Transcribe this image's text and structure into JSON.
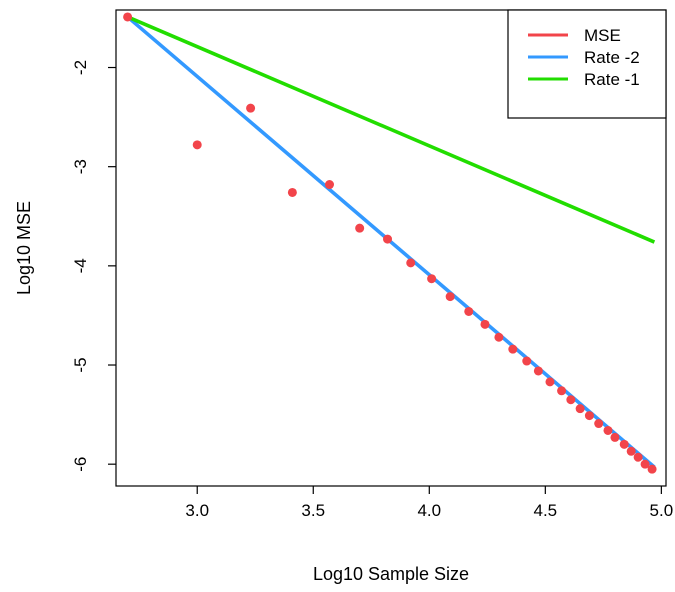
{
  "chart_data": {
    "type": "scatter",
    "title": "",
    "xlabel": "Log10 Sample Size",
    "ylabel": "Log10 MSE",
    "xlim": [
      2.65,
      5.02
    ],
    "ylim": [
      -6.22,
      -1.42
    ],
    "x_ticks": [
      {
        "value": 3.0,
        "label": "3.0"
      },
      {
        "value": 3.5,
        "label": "3.5"
      },
      {
        "value": 4.0,
        "label": "4.0"
      },
      {
        "value": 4.5,
        "label": "4.5"
      },
      {
        "value": 5.0,
        "label": "5.0"
      }
    ],
    "y_ticks": [
      {
        "value": -2,
        "label": "-2"
      },
      {
        "value": -3,
        "label": "-3"
      },
      {
        "value": -4,
        "label": "-4"
      },
      {
        "value": -5,
        "label": "-5"
      },
      {
        "value": -6,
        "label": "-6"
      }
    ],
    "grid": false,
    "legend": {
      "placement": "top-right",
      "entries": [
        {
          "label": "MSE",
          "color": "#F2444A"
        },
        {
          "label": "Rate -2",
          "color": "#3399FF"
        },
        {
          "label": "Rate -1",
          "color": "#22DD00"
        }
      ]
    },
    "series": [
      {
        "name": "MSE",
        "kind": "points",
        "color": "#F2444A",
        "points": [
          [
            2.7,
            -1.49
          ],
          [
            3.0,
            -2.78
          ],
          [
            3.23,
            -2.41
          ],
          [
            3.41,
            -3.26
          ],
          [
            3.57,
            -3.18
          ],
          [
            3.7,
            -3.62
          ],
          [
            3.82,
            -3.73
          ],
          [
            3.92,
            -3.97
          ],
          [
            4.01,
            -4.13
          ],
          [
            4.09,
            -4.31
          ],
          [
            4.17,
            -4.46
          ],
          [
            4.24,
            -4.59
          ],
          [
            4.3,
            -4.72
          ],
          [
            4.36,
            -4.84
          ],
          [
            4.42,
            -4.96
          ],
          [
            4.47,
            -5.06
          ],
          [
            4.52,
            -5.17
          ],
          [
            4.57,
            -5.26
          ],
          [
            4.61,
            -5.35
          ],
          [
            4.65,
            -5.44
          ],
          [
            4.69,
            -5.51
          ],
          [
            4.73,
            -5.59
          ],
          [
            4.77,
            -5.66
          ],
          [
            4.8,
            -5.73
          ],
          [
            4.84,
            -5.8
          ],
          [
            4.87,
            -5.87
          ],
          [
            4.9,
            -5.93
          ],
          [
            4.93,
            -6.0
          ],
          [
            4.96,
            -6.05
          ]
        ]
      },
      {
        "name": "Rate -2",
        "kind": "line",
        "color": "#3399FF",
        "points": [
          [
            2.7,
            -1.49
          ],
          [
            4.97,
            -6.03
          ]
        ]
      },
      {
        "name": "Rate -1",
        "kind": "line",
        "color": "#22DD00",
        "points": [
          [
            2.7,
            -1.49
          ],
          [
            4.97,
            -3.76
          ]
        ]
      }
    ]
  }
}
